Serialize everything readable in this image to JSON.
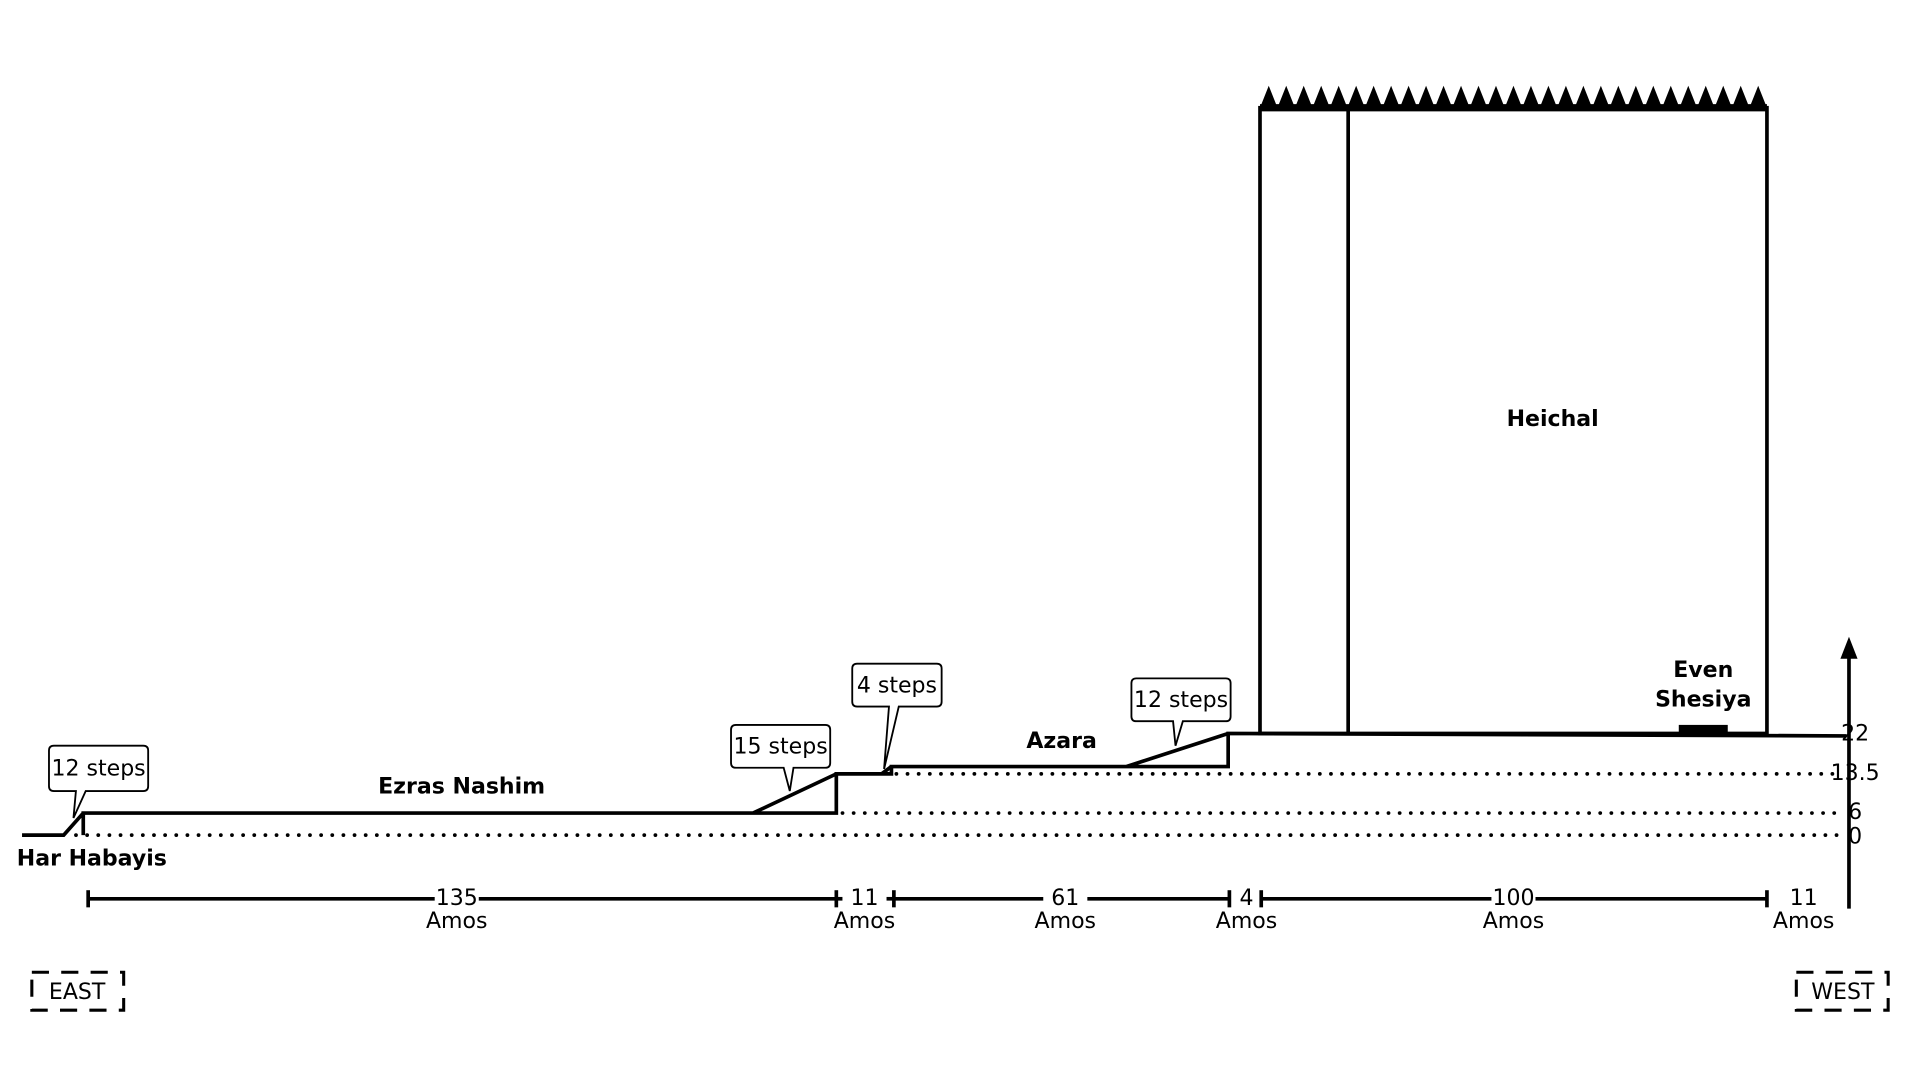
{
  "areas": [
    "Har Habayis",
    "Ezras Nashim",
    "Azara",
    "Heichal"
  ],
  "even_shesiya": [
    "Even",
    "Shesiya"
  ],
  "steps": [
    "12 steps",
    "15 steps",
    "4 steps",
    "12 steps"
  ],
  "distances": [
    {
      "value": 135,
      "unit": "Amos"
    },
    {
      "value": 11,
      "unit": "Amos"
    },
    {
      "value": 61,
      "unit": "Amos"
    },
    {
      "value": 4,
      "unit": "Amos"
    },
    {
      "value": 100,
      "unit": "Amos"
    },
    {
      "value": 11,
      "unit": "Amos"
    }
  ],
  "heights": [
    22,
    13.5,
    6,
    0
  ],
  "directions": [
    "EAST",
    "WEST"
  ]
}
